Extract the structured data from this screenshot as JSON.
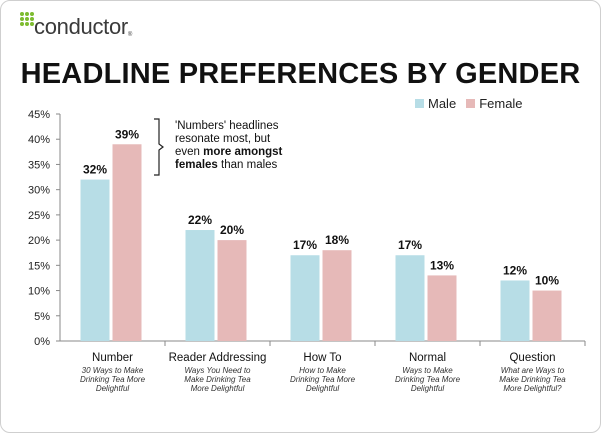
{
  "logo": {
    "text": "conductor",
    "mark": "®"
  },
  "chart_data": {
    "type": "bar",
    "title": "HEADLINE PREFERENCES BY GENDER",
    "xlabel": "",
    "ylabel": "",
    "ylim": [
      0,
      45
    ],
    "yticks": [
      "0%",
      "5%",
      "10%",
      "15%",
      "20%",
      "25%",
      "30%",
      "35%",
      "40%",
      "45%"
    ],
    "grid": false,
    "legend_position": "top-right",
    "categories": [
      "Number",
      "Reader Addressing",
      "How To",
      "Normal",
      "Question"
    ],
    "category_examples": [
      [
        "30 Ways to Make",
        "Drinking Tea More",
        "Delightful"
      ],
      [
        "Ways You Need to",
        "Make Drinking Tea",
        "More Delightful"
      ],
      [
        "How to Make",
        "Drinking Tea More",
        "Delightful"
      ],
      [
        "Ways to Make",
        "Drinking Tea More",
        "Delightful"
      ],
      [
        "What are Ways to",
        "Make Drinking Tea",
        "More Delightful?"
      ]
    ],
    "series": [
      {
        "name": "Male",
        "color": "#b7dde6",
        "values": [
          32,
          22,
          17,
          17,
          12
        ],
        "labels": [
          "32%",
          "22%",
          "17%",
          "17%",
          "12%"
        ]
      },
      {
        "name": "Female",
        "color": "#e6b9b8",
        "values": [
          39,
          20,
          18,
          13,
          10
        ],
        "labels": [
          "39%",
          "20%",
          "18%",
          "13%",
          "10%"
        ]
      }
    ],
    "annotation": {
      "line1": "'Numbers' headlines",
      "line2": "resonate most, but",
      "line3a": "even ",
      "line3b": "more amongst",
      "line4a": "females",
      "line4b": " than males"
    }
  }
}
